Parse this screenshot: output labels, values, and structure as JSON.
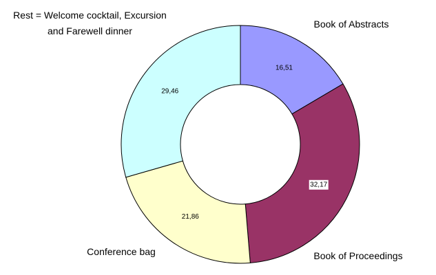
{
  "chart_data": {
    "type": "donut",
    "categories": [
      "Book of Abstracts",
      "Book of Proceedings",
      "Conference bag",
      "Rest = Welcome cocktail, Excursion and Farewell dinner"
    ],
    "values": [
      16.51,
      32.17,
      21.86,
      29.46
    ],
    "value_labels": [
      "16,51",
      "32,17",
      "21,86",
      "29,46"
    ],
    "colors": [
      "#9999ff",
      "#993366",
      "#ffffcc",
      "#ccffff"
    ]
  }
}
